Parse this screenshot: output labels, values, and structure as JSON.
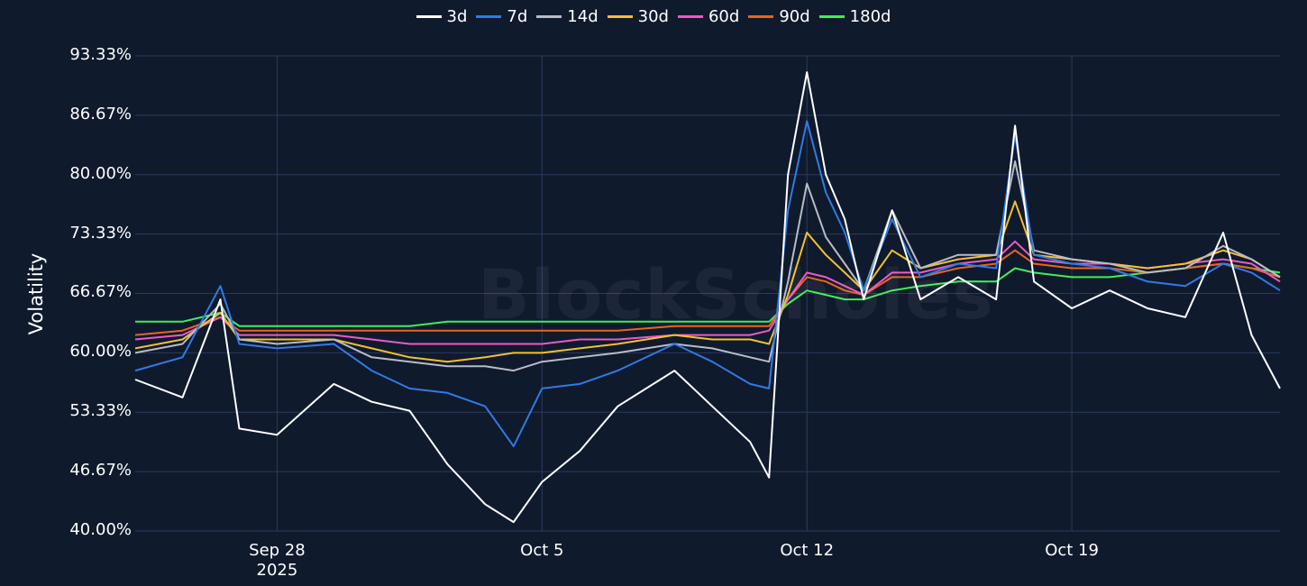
{
  "watermark": "BlockScholes",
  "chart_data": {
    "type": "line",
    "title": "",
    "xlabel": "",
    "ylabel": "Volatility",
    "ylim": [
      40.0,
      93.33
    ],
    "y_ticks": [
      "40.00%",
      "46.67%",
      "53.33%",
      "60.00%",
      "66.67%",
      "73.33%",
      "80.00%",
      "86.67%",
      "93.33%"
    ],
    "x_ticks": [
      {
        "date": "2025-09-28",
        "label": "Sep 28",
        "sublabel": "2025"
      },
      {
        "date": "2025-10-05",
        "label": "Oct 5",
        "sublabel": ""
      },
      {
        "date": "2025-10-12",
        "label": "Oct 12",
        "sublabel": ""
      },
      {
        "date": "2025-10-19",
        "label": "Oct 19",
        "sublabel": ""
      }
    ],
    "x_range": [
      "2025-09-24T06:00",
      "2025-10-24T12:00"
    ],
    "grid": true,
    "legend_position": "top-center",
    "x": [
      "2025-09-24T06:00",
      "2025-09-25T12:00",
      "2025-09-26T12:00",
      "2025-09-27T00:00",
      "2025-09-28T00:00",
      "2025-09-29T12:00",
      "2025-09-30T12:00",
      "2025-10-01T12:00",
      "2025-10-02T12:00",
      "2025-10-03T12:00",
      "2025-10-04T06:00",
      "2025-10-05T00:00",
      "2025-10-06T00:00",
      "2025-10-07T00:00",
      "2025-10-08T12:00",
      "2025-10-09T12:00",
      "2025-10-10T12:00",
      "2025-10-11T00:00",
      "2025-10-11T12:00",
      "2025-10-12T00:00",
      "2025-10-12T12:00",
      "2025-10-13T00:00",
      "2025-10-13T12:00",
      "2025-10-14T06:00",
      "2025-10-15T00:00",
      "2025-10-16T00:00",
      "2025-10-17T00:00",
      "2025-10-17T12:00",
      "2025-10-18T00:00",
      "2025-10-19T00:00",
      "2025-10-20T00:00",
      "2025-10-21T00:00",
      "2025-10-22T00:00",
      "2025-10-23T00:00",
      "2025-10-23T18:00",
      "2025-10-24T12:00"
    ],
    "series": [
      {
        "name": "3d",
        "color": "#ffffff",
        "values": [
          57.0,
          55.0,
          66.0,
          51.5,
          50.8,
          56.5,
          54.5,
          53.5,
          47.5,
          43.0,
          41.0,
          45.5,
          49.0,
          54.0,
          58.0,
          54.0,
          50.0,
          46.0,
          80.0,
          91.5,
          80.0,
          75.0,
          66.0,
          76.0,
          66.0,
          68.5,
          66.0,
          85.5,
          68.0,
          65.0,
          67.0,
          65.0,
          64.0,
          73.5,
          62.0,
          56.0
        ]
      },
      {
        "name": "7d",
        "color": "#2f7be6",
        "values": [
          58.0,
          59.5,
          67.5,
          61.0,
          60.5,
          61.0,
          58.0,
          56.0,
          55.5,
          54.0,
          49.5,
          56.0,
          56.5,
          58.0,
          61.0,
          59.0,
          56.5,
          56.0,
          76.0,
          86.0,
          78.0,
          73.5,
          67.0,
          75.0,
          68.5,
          70.0,
          69.5,
          84.5,
          71.0,
          70.0,
          69.5,
          68.0,
          67.5,
          70.0,
          69.0,
          67.0
        ]
      },
      {
        "name": "14d",
        "color": "#b8bcc6",
        "values": [
          60.0,
          61.0,
          65.5,
          61.5,
          61.0,
          61.5,
          59.5,
          59.0,
          58.5,
          58.5,
          58.0,
          59.0,
          59.5,
          60.0,
          61.0,
          60.5,
          59.5,
          59.0,
          68.0,
          79.0,
          73.0,
          70.0,
          67.0,
          76.0,
          69.5,
          71.0,
          71.0,
          81.5,
          71.5,
          70.5,
          70.0,
          69.0,
          69.5,
          72.0,
          70.5,
          68.5
        ]
      },
      {
        "name": "30d",
        "color": "#f2c12e",
        "values": [
          60.5,
          61.5,
          64.5,
          61.5,
          61.5,
          61.5,
          60.5,
          59.5,
          59.0,
          59.5,
          60.0,
          60.0,
          60.5,
          61.0,
          62.0,
          61.5,
          61.5,
          61.0,
          66.5,
          73.5,
          71.0,
          69.0,
          67.0,
          71.5,
          69.5,
          70.5,
          71.0,
          77.0,
          71.0,
          70.5,
          70.0,
          69.5,
          70.0,
          71.5,
          70.5,
          68.5
        ]
      },
      {
        "name": "60d",
        "color": "#ea5bc4",
        "values": [
          61.5,
          62.0,
          64.0,
          62.0,
          62.0,
          62.0,
          61.5,
          61.0,
          61.0,
          61.0,
          61.0,
          61.0,
          61.5,
          61.5,
          62.0,
          62.0,
          62.0,
          62.5,
          66.0,
          69.0,
          68.5,
          67.5,
          66.5,
          69.0,
          69.0,
          70.0,
          70.5,
          72.5,
          70.5,
          70.0,
          70.0,
          69.5,
          70.0,
          70.5,
          70.0,
          68.0
        ]
      },
      {
        "name": "90d",
        "color": "#e8651f",
        "values": [
          62.0,
          62.5,
          64.0,
          62.5,
          62.5,
          62.5,
          62.5,
          62.5,
          62.5,
          62.5,
          62.5,
          62.5,
          62.5,
          62.5,
          63.0,
          63.0,
          63.0,
          63.0,
          66.0,
          68.5,
          68.0,
          67.0,
          66.5,
          68.5,
          68.5,
          69.5,
          70.0,
          71.5,
          70.0,
          69.5,
          69.5,
          69.0,
          69.5,
          70.0,
          69.5,
          68.5
        ]
      },
      {
        "name": "180d",
        "color": "#3cf05a",
        "values": [
          63.5,
          63.5,
          64.5,
          63.0,
          63.0,
          63.0,
          63.0,
          63.0,
          63.5,
          63.5,
          63.5,
          63.5,
          63.5,
          63.5,
          63.5,
          63.5,
          63.5,
          63.5,
          65.5,
          67.0,
          66.5,
          66.0,
          66.0,
          67.0,
          67.5,
          68.0,
          68.0,
          69.5,
          69.0,
          68.5,
          68.5,
          69.0,
          69.5,
          70.0,
          69.5,
          69.0
        ]
      }
    ]
  }
}
